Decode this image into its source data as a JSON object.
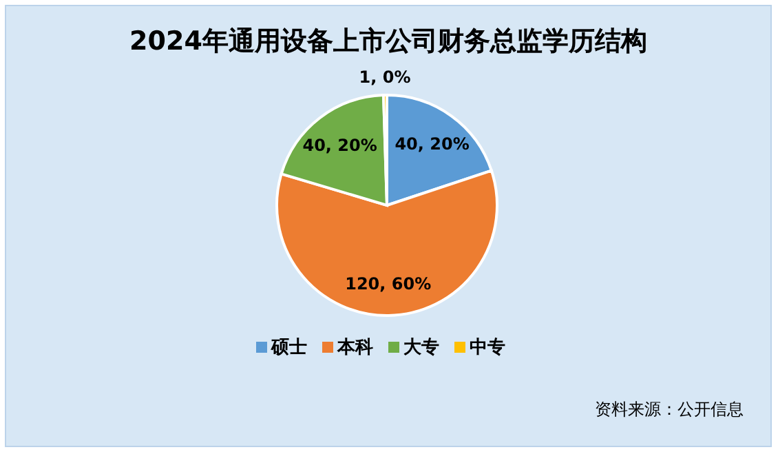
{
  "chart_data": {
    "type": "pie",
    "title": "2024年通用设备上市公司财务总监学历结构",
    "categories": [
      "硕士",
      "本科",
      "大专",
      "中专"
    ],
    "values": [
      40,
      120,
      40,
      1
    ],
    "colors": [
      "#5b9bd5",
      "#ed7d31",
      "#70ad47",
      "#ffc000"
    ],
    "value_labels": [
      "40, 20%",
      "120, 60%",
      "40, 20%",
      "1, 0%"
    ],
    "legend": "bottom",
    "annotations": [
      "资料来源：公开信息"
    ]
  }
}
